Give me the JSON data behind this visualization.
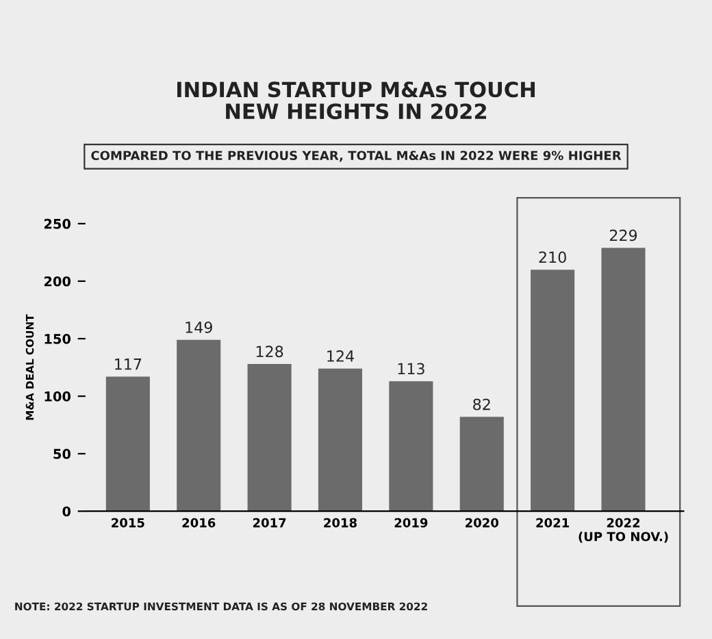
{
  "chart_data": {
    "type": "bar",
    "title": "INDIAN STARTUP M&As TOUCH\nNEW HEIGHTS IN 2022",
    "subtitle": "COMPARED TO THE PREVIOUS YEAR, TOTAL M&As IN 2022 WERE 9% HIGHER",
    "ylabel": "M&A DEAL COUNT",
    "categories": [
      "2015",
      "2016",
      "2017",
      "2018",
      "2019",
      "2020",
      "2021",
      "2022\n(UP TO NOV.)"
    ],
    "values": [
      117,
      149,
      128,
      124,
      113,
      82,
      210,
      229
    ],
    "color": "#6b6b6b",
    "ylim": [
      0,
      250
    ],
    "yticks": [
      0,
      50,
      100,
      150,
      200,
      250
    ],
    "grid": false,
    "data_labels": true,
    "annotations": [
      "NOTE: 2022 STARTUP INVESTMENT DATA IS AS OF 28 NOVEMBER 2022"
    ]
  }
}
